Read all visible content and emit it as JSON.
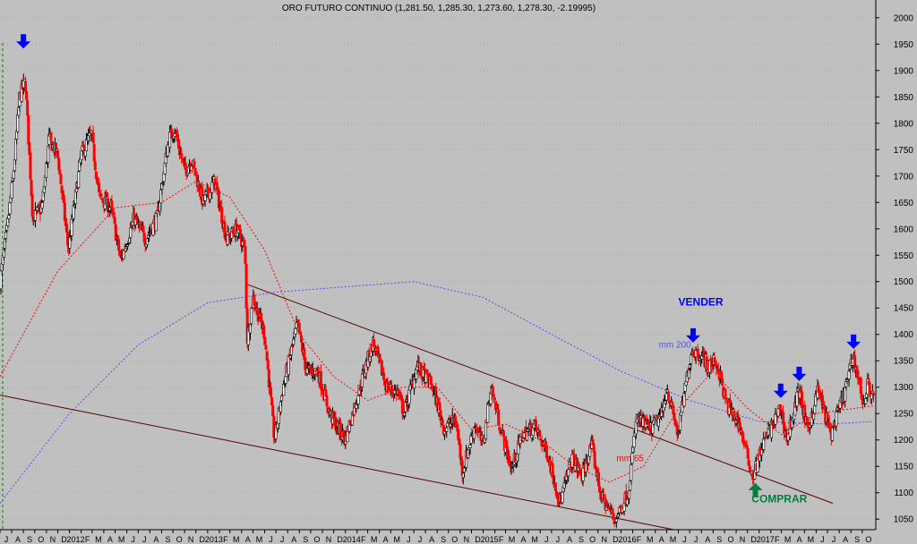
{
  "chart_data": {
    "type": "candlestick",
    "title": "ORO FUTURO CONTINUO (1,281.50, 1,285.30, 1,273.60, 1,278.30, -2.19995)",
    "ylim": [
      1030,
      2020
    ],
    "yticks": [
      1050,
      1100,
      1150,
      1200,
      1250,
      1300,
      1350,
      1400,
      1450,
      1500,
      1550,
      1600,
      1650,
      1700,
      1750,
      1800,
      1850,
      1900,
      1950,
      2000
    ],
    "xlim": [
      "2011-07-01",
      "2017-11-06"
    ],
    "x_tick_labels": [
      {
        "label": "J",
        "date": "2011-07-01"
      },
      {
        "label": "A",
        "date": "2011-08-01"
      },
      {
        "label": "S",
        "date": "2011-09-01"
      },
      {
        "label": "O",
        "date": "2011-10-01"
      },
      {
        "label": "N",
        "date": "2011-11-01"
      },
      {
        "label": "D",
        "date": "2011-12-01"
      },
      {
        "label": "2012",
        "date": "2012-01-01"
      },
      {
        "label": "F",
        "date": "2012-02-01"
      },
      {
        "label": "M",
        "date": "2012-03-01"
      },
      {
        "label": "A",
        "date": "2012-04-01"
      },
      {
        "label": "M",
        "date": "2012-05-01"
      },
      {
        "label": "J",
        "date": "2012-06-01"
      },
      {
        "label": "J",
        "date": "2012-07-01"
      },
      {
        "label": "A",
        "date": "2012-08-01"
      },
      {
        "label": "S",
        "date": "2012-09-01"
      },
      {
        "label": "O",
        "date": "2012-10-01"
      },
      {
        "label": "N",
        "date": "2012-11-01"
      },
      {
        "label": "D",
        "date": "2012-12-01"
      },
      {
        "label": "2013",
        "date": "2013-01-01"
      },
      {
        "label": "F",
        "date": "2013-02-01"
      },
      {
        "label": "M",
        "date": "2013-03-01"
      },
      {
        "label": "A",
        "date": "2013-04-01"
      },
      {
        "label": "M",
        "date": "2013-05-01"
      },
      {
        "label": "J",
        "date": "2013-06-01"
      },
      {
        "label": "J",
        "date": "2013-07-01"
      },
      {
        "label": "A",
        "date": "2013-08-01"
      },
      {
        "label": "S",
        "date": "2013-09-01"
      },
      {
        "label": "O",
        "date": "2013-10-01"
      },
      {
        "label": "N",
        "date": "2013-11-01"
      },
      {
        "label": "D",
        "date": "2013-12-01"
      },
      {
        "label": "2014",
        "date": "2014-01-01"
      },
      {
        "label": "F",
        "date": "2014-02-01"
      },
      {
        "label": "M",
        "date": "2014-03-01"
      },
      {
        "label": "A",
        "date": "2014-04-01"
      },
      {
        "label": "M",
        "date": "2014-05-01"
      },
      {
        "label": "J",
        "date": "2014-06-01"
      },
      {
        "label": "J",
        "date": "2014-07-01"
      },
      {
        "label": "A",
        "date": "2014-08-01"
      },
      {
        "label": "S",
        "date": "2014-09-01"
      },
      {
        "label": "O",
        "date": "2014-10-01"
      },
      {
        "label": "N",
        "date": "2014-11-01"
      },
      {
        "label": "D",
        "date": "2014-12-01"
      },
      {
        "label": "2015",
        "date": "2015-01-01"
      },
      {
        "label": "F",
        "date": "2015-02-01"
      },
      {
        "label": "M",
        "date": "2015-03-01"
      },
      {
        "label": "A",
        "date": "2015-04-01"
      },
      {
        "label": "M",
        "date": "2015-05-01"
      },
      {
        "label": "J",
        "date": "2015-06-01"
      },
      {
        "label": "J",
        "date": "2015-07-01"
      },
      {
        "label": "A",
        "date": "2015-08-01"
      },
      {
        "label": "S",
        "date": "2015-09-01"
      },
      {
        "label": "O",
        "date": "2015-10-01"
      },
      {
        "label": "N",
        "date": "2015-11-01"
      },
      {
        "label": "D",
        "date": "2015-12-01"
      },
      {
        "label": "2016",
        "date": "2016-01-01"
      },
      {
        "label": "F",
        "date": "2016-02-01"
      },
      {
        "label": "M",
        "date": "2016-03-01"
      },
      {
        "label": "A",
        "date": "2016-04-01"
      },
      {
        "label": "M",
        "date": "2016-05-01"
      },
      {
        "label": "J",
        "date": "2016-06-01"
      },
      {
        "label": "J",
        "date": "2016-07-01"
      },
      {
        "label": "A",
        "date": "2016-08-01"
      },
      {
        "label": "S",
        "date": "2016-09-01"
      },
      {
        "label": "O",
        "date": "2016-10-01"
      },
      {
        "label": "N",
        "date": "2016-11-01"
      },
      {
        "label": "D",
        "date": "2016-12-01"
      },
      {
        "label": "2017",
        "date": "2017-01-01"
      },
      {
        "label": "F",
        "date": "2017-02-01"
      },
      {
        "label": "M",
        "date": "2017-03-01"
      },
      {
        "label": "A",
        "date": "2017-04-01"
      },
      {
        "label": "M",
        "date": "2017-05-01"
      },
      {
        "label": "J",
        "date": "2017-06-01"
      },
      {
        "label": "J",
        "date": "2017-07-01"
      },
      {
        "label": "A",
        "date": "2017-08-01"
      },
      {
        "label": "S",
        "date": "2017-09-01"
      },
      {
        "label": "O",
        "date": "2017-10-01"
      }
    ],
    "price_path": [
      {
        "x": "2011-07-01",
        "y": 1500
      },
      {
        "x": "2011-07-20",
        "y": 1600
      },
      {
        "x": "2011-08-05",
        "y": 1700
      },
      {
        "x": "2011-08-22",
        "y": 1850
      },
      {
        "x": "2011-09-06",
        "y": 1880
      },
      {
        "x": "2011-09-26",
        "y": 1620
      },
      {
        "x": "2011-10-20",
        "y": 1640
      },
      {
        "x": "2011-11-08",
        "y": 1770
      },
      {
        "x": "2011-12-01",
        "y": 1740
      },
      {
        "x": "2011-12-29",
        "y": 1560
      },
      {
        "x": "2012-02-01",
        "y": 1740
      },
      {
        "x": "2012-02-28",
        "y": 1780
      },
      {
        "x": "2012-03-20",
        "y": 1660
      },
      {
        "x": "2012-04-20",
        "y": 1640
      },
      {
        "x": "2012-05-16",
        "y": 1540
      },
      {
        "x": "2012-06-20",
        "y": 1620
      },
      {
        "x": "2012-07-20",
        "y": 1580
      },
      {
        "x": "2012-08-20",
        "y": 1620
      },
      {
        "x": "2012-09-20",
        "y": 1770
      },
      {
        "x": "2012-10-05",
        "y": 1790
      },
      {
        "x": "2012-11-01",
        "y": 1710
      },
      {
        "x": "2012-11-20",
        "y": 1730
      },
      {
        "x": "2012-12-20",
        "y": 1650
      },
      {
        "x": "2013-01-20",
        "y": 1690
      },
      {
        "x": "2013-02-20",
        "y": 1580
      },
      {
        "x": "2013-03-20",
        "y": 1600
      },
      {
        "x": "2013-04-10",
        "y": 1560
      },
      {
        "x": "2013-04-16",
        "y": 1390
      },
      {
        "x": "2013-05-01",
        "y": 1470
      },
      {
        "x": "2013-06-01",
        "y": 1400
      },
      {
        "x": "2013-06-27",
        "y": 1200
      },
      {
        "x": "2013-07-20",
        "y": 1300
      },
      {
        "x": "2013-08-27",
        "y": 1420
      },
      {
        "x": "2013-09-20",
        "y": 1330
      },
      {
        "x": "2013-10-20",
        "y": 1330
      },
      {
        "x": "2013-11-20",
        "y": 1250
      },
      {
        "x": "2013-12-31",
        "y": 1200
      },
      {
        "x": "2014-01-20",
        "y": 1250
      },
      {
        "x": "2014-02-20",
        "y": 1330
      },
      {
        "x": "2014-03-15",
        "y": 1385
      },
      {
        "x": "2014-04-20",
        "y": 1300
      },
      {
        "x": "2014-05-20",
        "y": 1290
      },
      {
        "x": "2014-06-05",
        "y": 1250
      },
      {
        "x": "2014-07-10",
        "y": 1340
      },
      {
        "x": "2014-08-20",
        "y": 1300
      },
      {
        "x": "2014-09-20",
        "y": 1220
      },
      {
        "x": "2014-10-20",
        "y": 1240
      },
      {
        "x": "2014-11-07",
        "y": 1140
      },
      {
        "x": "2014-12-10",
        "y": 1230
      },
      {
        "x": "2014-12-31",
        "y": 1190
      },
      {
        "x": "2015-01-22",
        "y": 1300
      },
      {
        "x": "2015-02-20",
        "y": 1210
      },
      {
        "x": "2015-03-17",
        "y": 1145
      },
      {
        "x": "2015-04-15",
        "y": 1210
      },
      {
        "x": "2015-05-18",
        "y": 1225
      },
      {
        "x": "2015-06-20",
        "y": 1175
      },
      {
        "x": "2015-07-24",
        "y": 1080
      },
      {
        "x": "2015-08-24",
        "y": 1165
      },
      {
        "x": "2015-09-20",
        "y": 1130
      },
      {
        "x": "2015-10-15",
        "y": 1190
      },
      {
        "x": "2015-11-10",
        "y": 1090
      },
      {
        "x": "2015-12-17",
        "y": 1050
      },
      {
        "x": "2016-01-20",
        "y": 1100
      },
      {
        "x": "2016-02-11",
        "y": 1240
      },
      {
        "x": "2016-03-20",
        "y": 1220
      },
      {
        "x": "2016-04-20",
        "y": 1250
      },
      {
        "x": "2016-05-01",
        "y": 1300
      },
      {
        "x": "2016-05-31",
        "y": 1210
      },
      {
        "x": "2016-06-24",
        "y": 1320
      },
      {
        "x": "2016-07-06",
        "y": 1370
      },
      {
        "x": "2016-08-02",
        "y": 1360
      },
      {
        "x": "2016-08-20",
        "y": 1340
      },
      {
        "x": "2016-09-07",
        "y": 1350
      },
      {
        "x": "2016-09-20",
        "y": 1320
      },
      {
        "x": "2016-10-05",
        "y": 1270
      },
      {
        "x": "2016-11-09",
        "y": 1230
      },
      {
        "x": "2016-12-15",
        "y": 1130
      },
      {
        "x": "2017-01-10",
        "y": 1190
      },
      {
        "x": "2017-02-27",
        "y": 1260
      },
      {
        "x": "2017-03-15",
        "y": 1200
      },
      {
        "x": "2017-04-17",
        "y": 1295
      },
      {
        "x": "2017-05-09",
        "y": 1215
      },
      {
        "x": "2017-06-06",
        "y": 1295
      },
      {
        "x": "2017-07-10",
        "y": 1210
      },
      {
        "x": "2017-08-15",
        "y": 1290
      },
      {
        "x": "2017-09-08",
        "y": 1360
      },
      {
        "x": "2017-10-06",
        "y": 1265
      },
      {
        "x": "2017-10-16",
        "y": 1305
      },
      {
        "x": "2017-11-01",
        "y": 1278
      }
    ],
    "moving_averages": [
      {
        "label": "mm 65",
        "color": "#ff0000",
        "label_at": {
          "x": "2015-12-20",
          "y": 1160
        },
        "points": [
          {
            "x": "2011-07-01",
            "y": 1320
          },
          {
            "x": "2011-12-01",
            "y": 1520
          },
          {
            "x": "2012-05-01",
            "y": 1640
          },
          {
            "x": "2012-09-01",
            "y": 1650
          },
          {
            "x": "2012-12-01",
            "y": 1690
          },
          {
            "x": "2013-03-01",
            "y": 1660
          },
          {
            "x": "2013-06-01",
            "y": 1560
          },
          {
            "x": "2013-09-01",
            "y": 1400
          },
          {
            "x": "2013-12-01",
            "y": 1320
          },
          {
            "x": "2014-03-01",
            "y": 1275
          },
          {
            "x": "2014-06-01",
            "y": 1300
          },
          {
            "x": "2014-09-01",
            "y": 1300
          },
          {
            "x": "2014-12-01",
            "y": 1220
          },
          {
            "x": "2015-03-01",
            "y": 1230
          },
          {
            "x": "2015-06-01",
            "y": 1200
          },
          {
            "x": "2015-09-01",
            "y": 1150
          },
          {
            "x": "2015-12-01",
            "y": 1120
          },
          {
            "x": "2016-03-01",
            "y": 1150
          },
          {
            "x": "2016-06-01",
            "y": 1260
          },
          {
            "x": "2016-09-01",
            "y": 1330
          },
          {
            "x": "2016-12-01",
            "y": 1260
          },
          {
            "x": "2017-03-01",
            "y": 1210
          },
          {
            "x": "2017-06-01",
            "y": 1250
          },
          {
            "x": "2017-11-01",
            "y": 1265
          }
        ]
      },
      {
        "label": "mm 200",
        "color": "#5050ff",
        "label_at": {
          "x": "2016-04-10",
          "y": 1375
        },
        "points": [
          {
            "x": "2011-07-01",
            "y": 1080
          },
          {
            "x": "2012-01-01",
            "y": 1250
          },
          {
            "x": "2012-07-01",
            "y": 1380
          },
          {
            "x": "2013-01-01",
            "y": 1460
          },
          {
            "x": "2013-07-01",
            "y": 1480
          },
          {
            "x": "2014-01-01",
            "y": 1490
          },
          {
            "x": "2014-07-01",
            "y": 1500
          },
          {
            "x": "2015-01-01",
            "y": 1470
          },
          {
            "x": "2015-07-01",
            "y": 1400
          },
          {
            "x": "2016-01-01",
            "y": 1330
          },
          {
            "x": "2016-07-01",
            "y": 1275
          },
          {
            "x": "2017-01-01",
            "y": 1235
          },
          {
            "x": "2017-07-01",
            "y": 1230
          },
          {
            "x": "2017-11-01",
            "y": 1235
          }
        ]
      }
    ],
    "trendlines": [
      {
        "name": "upper",
        "color": "#5a0000",
        "from": {
          "x": "2013-04-15",
          "y": 1495
        },
        "to": {
          "x": "2017-07-15",
          "y": 1080
        }
      },
      {
        "name": "lower",
        "color": "#5a0000",
        "from": {
          "x": "2011-07-01",
          "y": 1285
        },
        "to": {
          "x": "2016-05-20",
          "y": 1030
        }
      }
    ],
    "vertical_marker": {
      "date": "2011-07-08",
      "color": "#008000"
    },
    "annotations": [
      {
        "type": "arrow-down",
        "color": "#0000ff",
        "x": "2011-09-01",
        "y": 1945
      },
      {
        "type": "arrow-down",
        "color": "#0000ff",
        "x": "2016-07-10",
        "y": 1388,
        "text": "VENDER",
        "text_at": {
          "x": "2016-06-01",
          "y": 1455
        }
      },
      {
        "type": "arrow-down",
        "color": "#0000ff",
        "x": "2017-02-27",
        "y": 1283
      },
      {
        "type": "arrow-down",
        "color": "#0000ff",
        "x": "2017-04-17",
        "y": 1315
      },
      {
        "type": "arrow-down",
        "color": "#0000ff",
        "x": "2017-09-08",
        "y": 1376
      },
      {
        "type": "arrow-up",
        "color": "#008040",
        "x": "2016-12-22",
        "y": 1115,
        "text": "COMPRAR",
        "text_at": {
          "x": "2016-12-12",
          "y": 1082
        }
      }
    ],
    "colors": {
      "background": "#c0c0c0",
      "up_candle": "#000000",
      "down_candle": "#ff0000"
    },
    "grid": true,
    "legend": "none"
  }
}
